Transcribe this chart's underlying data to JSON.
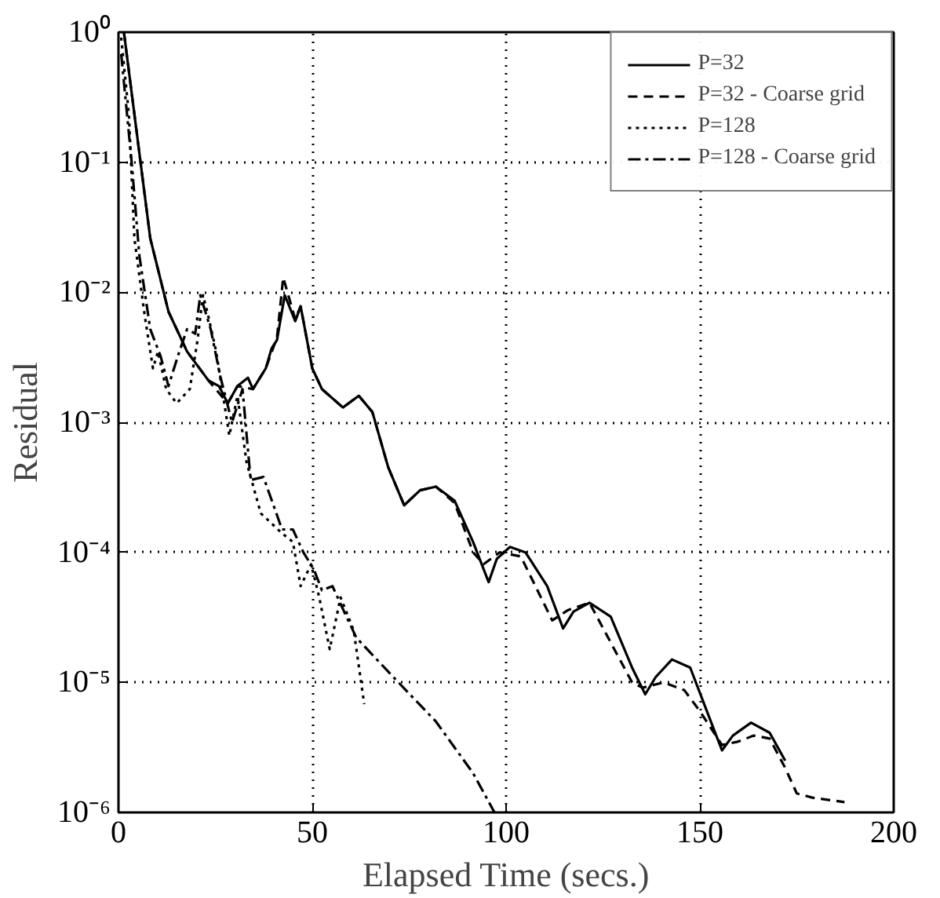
{
  "chart_data": {
    "type": "line",
    "xlabel": "Elapsed Time (secs.)",
    "ylabel": "Residual",
    "log": "y",
    "grid": true,
    "legend": "top right",
    "marker": "none",
    "xlim": [
      0,
      200
    ],
    "xticks": [
      0,
      50,
      100,
      150,
      200
    ],
    "ylim": [
      1e-06,
      1
    ],
    "yticks": [
      {
        "value": 1,
        "label": "10⁰"
      },
      {
        "value": 0.1,
        "label": "10⁻¹"
      },
      {
        "value": 0.01,
        "label": "10⁻²"
      },
      {
        "value": 0.001,
        "label": "10⁻³"
      },
      {
        "value": 0.0001,
        "label": "10⁻⁴"
      },
      {
        "value": 1e-05,
        "label": "10⁻⁵"
      },
      {
        "value": 1e-06,
        "label": "10⁻⁶"
      }
    ],
    "series": [
      {
        "name": "P=32",
        "color": "#000000",
        "line_style": "solid",
        "x": [
          1.4,
          8.2,
          12.9,
          17.7,
          23.2,
          25.9,
          28.2,
          30.7,
          33.4,
          34.7,
          38,
          39.5,
          40.9,
          42.9,
          45.6,
          47,
          50,
          52.5,
          57.9,
          62,
          65.5,
          69.6,
          73.7,
          77.8,
          81.9,
          86.7,
          91.5,
          95.5,
          97.6,
          101,
          105,
          110.6,
          114.7,
          117.4,
          121.5,
          127,
          132.5,
          135.9,
          138.6,
          142.8,
          147.5,
          152.3,
          155.7,
          158.5,
          163.2,
          168,
          172
        ],
        "values": [
          1,
          0.026,
          0.0071,
          0.0035,
          0.0021,
          0.0019,
          0.0014,
          0.0019,
          0.0022,
          0.0018,
          0.0026,
          0.0037,
          0.0043,
          0.0095,
          0.006,
          0.0078,
          0.0026,
          0.0018,
          0.0013,
          0.0016,
          0.0012,
          0.00045,
          0.00023,
          0.0003,
          0.00032,
          0.00025,
          0.00012,
          5.9e-05,
          8.9e-05,
          0.00011,
          0.0001,
          5.5e-05,
          2.6e-05,
          3.5e-05,
          4.1e-05,
          3.2e-05,
          1.3e-05,
          8.1e-06,
          1.1e-05,
          1.5e-05,
          1.3e-05,
          5.5e-06,
          3e-06,
          3.9e-06,
          4.9e-06,
          4.1e-06,
          2.5e-06
        ]
      },
      {
        "name": "P=32 - Coarse grid",
        "color": "#000000",
        "line_style": "dashed",
        "x": [
          1.4,
          8.2,
          12.9,
          17.7,
          23.2,
          28.2,
          30.7,
          34.7,
          38,
          40.9,
          42.5,
          45.6,
          47,
          50,
          52.5,
          57.9,
          62,
          65.5,
          69.6,
          73.7,
          77.8,
          81.9,
          86.7,
          91.5,
          94.2,
          98.3,
          103.8,
          111.9,
          116,
          121.5,
          132.5,
          135.2,
          140.7,
          146,
          150,
          155.7,
          159.8,
          163.9,
          168,
          172,
          175,
          179,
          187.3
        ],
        "values": [
          1,
          0.026,
          0.0071,
          0.0035,
          0.0021,
          0.0014,
          0.0019,
          0.0018,
          0.0026,
          0.0045,
          0.013,
          0.0062,
          0.0078,
          0.0026,
          0.0018,
          0.0013,
          0.0016,
          0.0012,
          0.00045,
          0.00023,
          0.0003,
          0.00032,
          0.00024,
          0.0001,
          8.1e-05,
          0.0001,
          9.3e-05,
          3e-05,
          3.6e-05,
          4.1e-05,
          1e-05,
          9.1e-06,
          1e-05,
          8.7e-06,
          6e-06,
          3.3e-06,
          3.5e-06,
          3.9e-06,
          3.7e-06,
          2.2e-06,
          1.4e-06,
          1.3e-06,
          1.2e-06
        ]
      },
      {
        "name": "P=128",
        "color": "#000000",
        "line_style": "dotted",
        "x": [
          0.7,
          2.7,
          4.1,
          6.8,
          8.9,
          10.2,
          12.3,
          15,
          18.4,
          20.4,
          21.8,
          23.2,
          25.2,
          26.6,
          28.6,
          30.7,
          33,
          36.7,
          42.2,
          45,
          47,
          49.7,
          51.8,
          54.5,
          57.3,
          60.7,
          63.4
        ],
        "values": [
          0.91,
          0.23,
          0.026,
          0.0065,
          0.0026,
          0.0035,
          0.0018,
          0.0014,
          0.0018,
          0.0043,
          0.0095,
          0.0065,
          0.0035,
          0.0019,
          0.00079,
          0.0016,
          0.0005,
          0.0002,
          0.00014,
          0.00012,
          5.5e-05,
          8.1e-05,
          4.5e-05,
          1.8e-05,
          4.5e-05,
          2.5e-05,
          6.8e-06
        ]
      },
      {
        "name": "P=128 - Coarse grid",
        "color": "#000000",
        "line_style": "dashdot",
        "x": [
          0.7,
          3.4,
          5.4,
          8.2,
          10.9,
          12.9,
          15.7,
          17.7,
          19.8,
          21.1,
          23.8,
          26.2,
          29.3,
          32,
          34.1,
          37.4,
          42.2,
          45,
          47.7,
          50.4,
          52.5,
          55.2,
          58.6,
          61.4,
          70.9,
          81.9,
          91.5,
          97
        ],
        "values": [
          0.68,
          0.1,
          0.019,
          0.0052,
          0.0032,
          0.0019,
          0.0035,
          0.0052,
          0.0048,
          0.0095,
          0.0052,
          0.0023,
          0.001,
          0.0018,
          0.00036,
          0.00038,
          0.00015,
          0.00015,
          0.0001,
          7.4e-05,
          5.1e-05,
          5.5e-05,
          3.3e-05,
          2.2e-05,
          1.1e-05,
          5e-06,
          2e-06,
          1e-06
        ]
      }
    ]
  }
}
